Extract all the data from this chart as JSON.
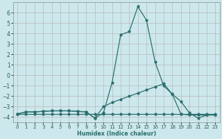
{
  "xlabel": "Humidex (Indice chaleur)",
  "background_color": "#cce8ec",
  "grid_color": "#b8b8b8",
  "line_color": "#2a6e6e",
  "xlim": [
    -0.5,
    23.5
  ],
  "ylim": [
    -4.5,
    7.0
  ],
  "yticks": [
    -4,
    -3,
    -2,
    -1,
    0,
    1,
    2,
    3,
    4,
    5,
    6
  ],
  "xticks": [
    0,
    1,
    2,
    3,
    4,
    5,
    6,
    7,
    8,
    9,
    10,
    11,
    12,
    13,
    14,
    15,
    16,
    17,
    18,
    19,
    20,
    21,
    22,
    23
  ],
  "line1_x": [
    0,
    1,
    2,
    3,
    4,
    5,
    6,
    7,
    8,
    9,
    10,
    11,
    12,
    13,
    14,
    15,
    16,
    17,
    18,
    19,
    20,
    21,
    22,
    23
  ],
  "line1_y": [
    -3.7,
    -3.5,
    -3.5,
    -3.45,
    -3.4,
    -3.4,
    -3.4,
    -3.45,
    -3.5,
    -4.1,
    -3.6,
    -0.7,
    3.9,
    4.2,
    6.6,
    5.3,
    1.3,
    -1.0,
    -1.8,
    -3.7,
    -3.8,
    -3.8,
    -3.8,
    -3.8
  ],
  "line2_x": [
    0,
    1,
    2,
    3,
    4,
    5,
    6,
    7,
    8,
    9,
    10,
    11,
    12,
    13,
    14,
    15,
    16,
    17,
    18,
    19,
    20,
    21,
    22,
    23
  ],
  "line2_y": [
    -3.7,
    -3.5,
    -3.5,
    -3.45,
    -3.4,
    -3.4,
    -3.4,
    -3.45,
    -3.5,
    -4.1,
    -3.0,
    -2.6,
    -2.3,
    -2.0,
    -1.7,
    -1.4,
    -1.1,
    -0.8,
    -1.8,
    -2.5,
    -3.6,
    -4.1,
    -3.8,
    -3.8
  ],
  "line3_x": [
    0,
    1,
    2,
    3,
    4,
    5,
    6,
    7,
    8,
    9,
    10,
    11,
    12,
    13,
    14,
    15,
    16,
    17,
    18,
    19,
    20,
    21,
    22,
    23
  ],
  "line3_y": [
    -3.7,
    -3.7,
    -3.7,
    -3.7,
    -3.7,
    -3.7,
    -3.7,
    -3.7,
    -3.7,
    -3.7,
    -3.7,
    -3.7,
    -3.7,
    -3.7,
    -3.7,
    -3.7,
    -3.7,
    -3.7,
    -3.7,
    -3.7,
    -3.7,
    -3.7,
    -3.7,
    -3.7
  ]
}
